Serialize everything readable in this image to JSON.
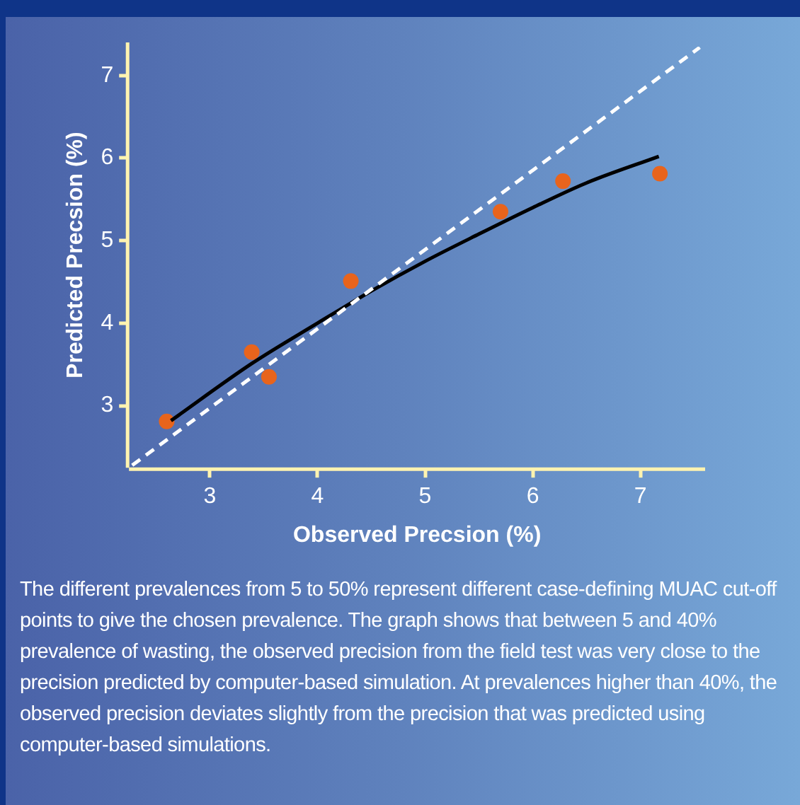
{
  "chart_data": {
    "type": "scatter",
    "xlabel": "Observed Precsion (%)",
    "ylabel": "Predicted Precsion (%)",
    "xlim": [
      2.25,
      7.6
    ],
    "ylim": [
      2.25,
      7.4
    ],
    "xticks": [
      3,
      4,
      5,
      6,
      7
    ],
    "yticks": [
      3,
      4,
      5,
      6,
      7
    ],
    "grid": false,
    "legend": false,
    "series": [
      {
        "type": "line",
        "color": "#ffffff",
        "line_style": "dashed",
        "marker": "none",
        "x": [
          2.28,
          7.55
        ],
        "values": [
          2.28,
          7.34
        ]
      },
      {
        "type": "line",
        "color": "#000000",
        "line_style": "solid",
        "marker": "none",
        "x": [
          2.64,
          3.4,
          4,
          4.5,
          5,
          5.5,
          6,
          6.5,
          7.17
        ],
        "values": [
          2.82,
          3.52,
          4.0,
          4.39,
          4.75,
          5.08,
          5.4,
          5.7,
          6.02
        ]
      },
      {
        "type": "scatter",
        "color": "#e8641c",
        "marker": "circle",
        "x": [
          2.6,
          3.39,
          3.55,
          4.31,
          5.7,
          6.28,
          7.18
        ],
        "values": [
          2.81,
          3.65,
          3.35,
          4.51,
          5.35,
          5.72,
          5.81
        ]
      }
    ],
    "annotations": [
      "The different prevalences from 5 to 50% represent different case-defining MUAC cut-off points to give the chosen prevalence. The graph shows that between 5 and 40% prevalence of wasting, the observed precision from the field test was very close to the precision predicted by computer-based simulation. At prevalences higher than 40%, the observed precision deviates slightly from the precision that was predicted using computer-based simulations."
    ]
  }
}
